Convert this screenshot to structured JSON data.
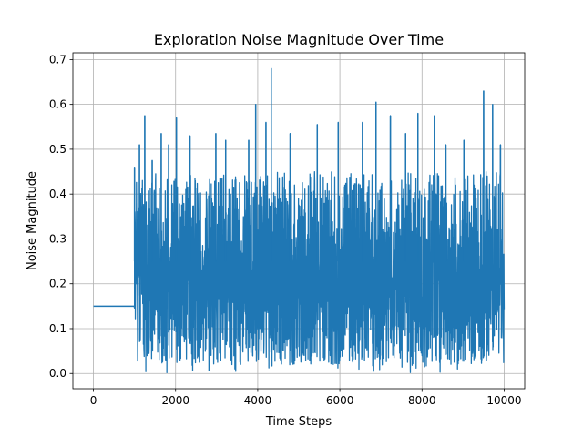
{
  "chart_data": {
    "type": "line",
    "title": "Exploration Noise Magnitude Over Time",
    "xlabel": "Time Steps",
    "ylabel": "Noise Magnitude",
    "xlim": [
      -500,
      10500
    ],
    "ylim": [
      -0.034,
      0.715
    ],
    "xticks": [
      0,
      2000,
      4000,
      6000,
      8000,
      10000
    ],
    "yticks": [
      0.0,
      0.1,
      0.2,
      0.3,
      0.4,
      0.5,
      0.6,
      0.7
    ],
    "xtick_labels": [
      "0",
      "2000",
      "4000",
      "6000",
      "8000",
      "10000"
    ],
    "ytick_labels": [
      "0.0",
      "0.1",
      "0.2",
      "0.3",
      "0.4",
      "0.5",
      "0.6",
      "0.7"
    ],
    "grid": true,
    "legend": "none",
    "series": [
      {
        "color": "#1f77b4",
        "constant_segment": {
          "x_start": 0,
          "x_end": 990,
          "value": 0.15
        },
        "noisy_segment": {
          "x_start": 1000,
          "x_end": 10000,
          "typical_range": [
            0.02,
            0.45
          ],
          "min": 0.0,
          "max": 0.68
        },
        "peaks": [
          {
            "x": 1000,
            "y": 0.46
          },
          {
            "x": 1120,
            "y": 0.51
          },
          {
            "x": 1250,
            "y": 0.575
          },
          {
            "x": 1430,
            "y": 0.475
          },
          {
            "x": 1650,
            "y": 0.535
          },
          {
            "x": 1830,
            "y": 0.51
          },
          {
            "x": 2020,
            "y": 0.57
          },
          {
            "x": 2350,
            "y": 0.53
          },
          {
            "x": 2980,
            "y": 0.535
          },
          {
            "x": 3220,
            "y": 0.52
          },
          {
            "x": 3780,
            "y": 0.52
          },
          {
            "x": 3950,
            "y": 0.6
          },
          {
            "x": 4200,
            "y": 0.56
          },
          {
            "x": 4330,
            "y": 0.68
          },
          {
            "x": 4790,
            "y": 0.535
          },
          {
            "x": 5450,
            "y": 0.555
          },
          {
            "x": 5960,
            "y": 0.56
          },
          {
            "x": 6550,
            "y": 0.56
          },
          {
            "x": 6880,
            "y": 0.605
          },
          {
            "x": 7230,
            "y": 0.575
          },
          {
            "x": 7600,
            "y": 0.535
          },
          {
            "x": 7900,
            "y": 0.58
          },
          {
            "x": 8300,
            "y": 0.575
          },
          {
            "x": 8580,
            "y": 0.51
          },
          {
            "x": 9020,
            "y": 0.52
          },
          {
            "x": 9500,
            "y": 0.63
          },
          {
            "x": 9720,
            "y": 0.6
          },
          {
            "x": 9910,
            "y": 0.51
          }
        ]
      }
    ]
  }
}
